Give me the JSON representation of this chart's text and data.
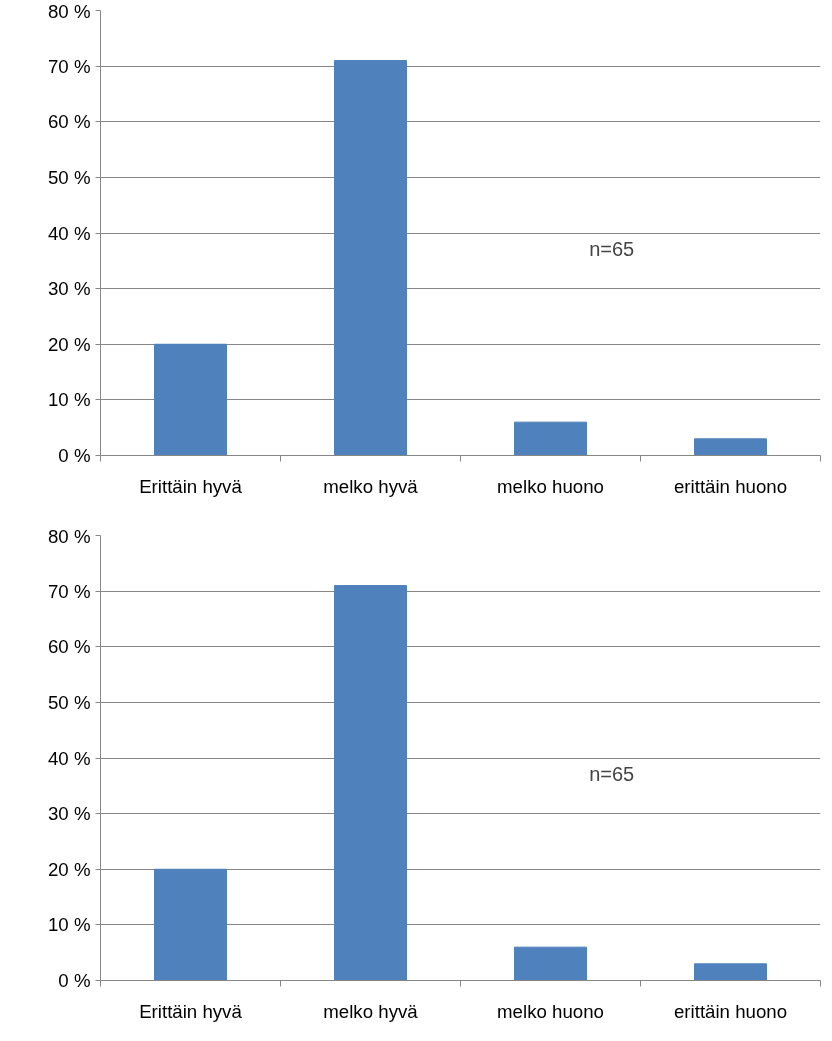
{
  "chart_data": [
    {
      "type": "bar",
      "categories": [
        "Erittäin hyvä",
        "melko hyvä",
        "melko huono",
        "erittäin huono"
      ],
      "values": [
        20,
        71,
        6,
        3
      ],
      "color": "#4f81bd",
      "ylim": [
        0,
        80
      ],
      "yticks": [
        {
          "value": 0,
          "label": "0 %"
        },
        {
          "value": 10,
          "label": "10 %"
        },
        {
          "value": 20,
          "label": "20 %"
        },
        {
          "value": 30,
          "label": "30 %"
        },
        {
          "value": 40,
          "label": "40 %"
        },
        {
          "value": 50,
          "label": "50 %"
        },
        {
          "value": 60,
          "label": "60 %"
        },
        {
          "value": 70,
          "label": "70 %"
        },
        {
          "value": 80,
          "label": "80 %"
        }
      ],
      "grid": "y",
      "annotations": [
        "n=65"
      ]
    },
    {
      "type": "bar",
      "categories": [
        "Erittäin hyvä",
        "melko hyvä",
        "melko huono",
        "erittäin huono"
      ],
      "values": [
        20,
        71,
        6,
        3
      ],
      "color": "#4f81bd",
      "ylim": [
        0,
        80
      ],
      "yticks": [
        {
          "value": 0,
          "label": "0 %"
        },
        {
          "value": 10,
          "label": "10 %"
        },
        {
          "value": 20,
          "label": "20 %"
        },
        {
          "value": 30,
          "label": "30 %"
        },
        {
          "value": 40,
          "label": "40 %"
        },
        {
          "value": 50,
          "label": "50 %"
        },
        {
          "value": 60,
          "label": "60 %"
        },
        {
          "value": 70,
          "label": "70 %"
        },
        {
          "value": 80,
          "label": "80 %"
        }
      ],
      "grid": "y",
      "annotations": [
        "n=65"
      ]
    }
  ]
}
